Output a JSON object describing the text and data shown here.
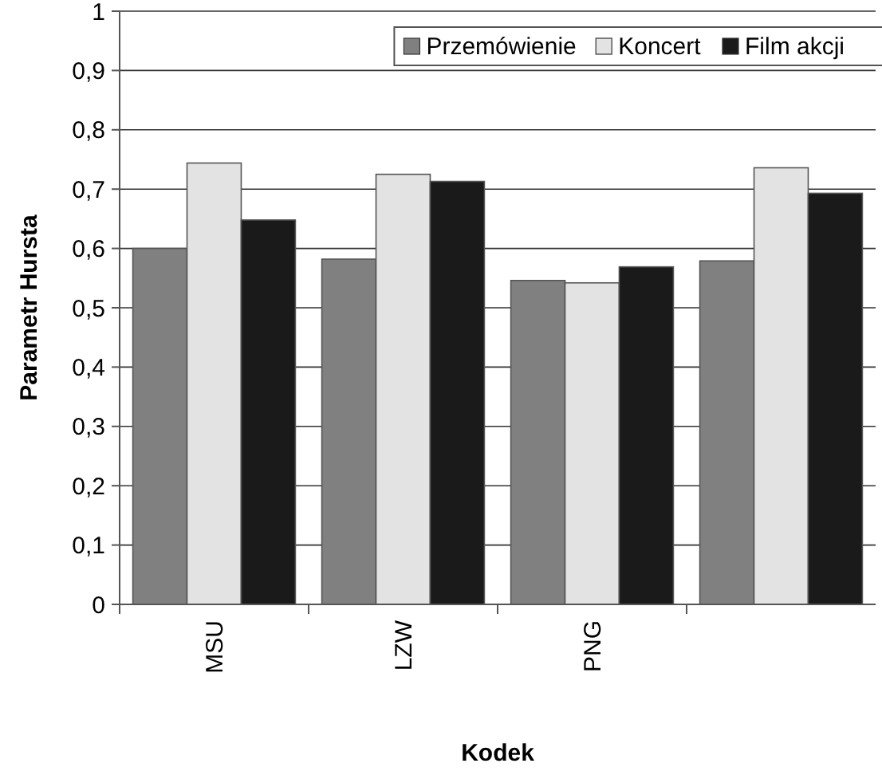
{
  "chart_data": {
    "type": "bar",
    "xlabel": "Kodek",
    "ylabel": "Parametr Hursta",
    "categories": [
      "MSU",
      "LZW",
      "PNG",
      null
    ],
    "series": [
      {
        "name": "Przemówienie",
        "color": "#808080",
        "values": [
          0.6,
          0.582,
          0.546,
          0.579
        ]
      },
      {
        "name": "Koncert",
        "color": "#e3e3e3",
        "values": [
          0.744,
          0.725,
          0.542,
          0.736
        ]
      },
      {
        "name": "Film akcji",
        "color": "#1a1a1a",
        "values": [
          0.648,
          0.713,
          0.569,
          0.693
        ]
      }
    ],
    "ylim": [
      0,
      1
    ],
    "yticks": [
      0,
      {
        "value": 0.1,
        "label": "0,1"
      },
      {
        "value": 0.2,
        "label": "0,2"
      },
      {
        "value": 0.3,
        "label": "0,3"
      },
      {
        "value": 0.4,
        "label": "0,4"
      },
      {
        "value": 0.5,
        "label": "0,5"
      },
      {
        "value": 0.6,
        "label": "0,6"
      },
      {
        "value": 0.7,
        "label": "0,7"
      },
      {
        "value": 0.8,
        "label": "0,8"
      },
      {
        "value": 0.9,
        "label": "0,9"
      },
      1
    ],
    "grid": "y",
    "legend": "top right"
  }
}
